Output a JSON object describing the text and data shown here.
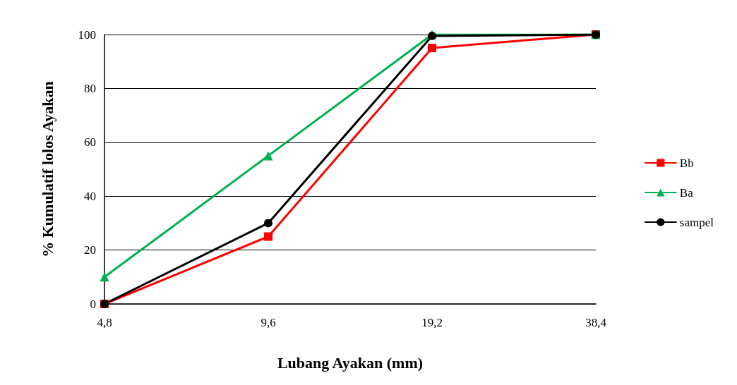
{
  "chart_data": {
    "type": "line",
    "xlabel": "Lubang Ayakan (mm)",
    "ylabel": "% Kumulatif lolos Ayakan",
    "categories": [
      "4,8",
      "9,6",
      "19,2",
      "38,4"
    ],
    "series": [
      {
        "name": "Bb",
        "color": "#ff0000",
        "marker": "square",
        "values": [
          0,
          25,
          95,
          100
        ]
      },
      {
        "name": "Ba",
        "color": "#00b050",
        "marker": "triangle",
        "values": [
          10,
          55,
          100,
          100
        ]
      },
      {
        "name": "sampel",
        "color": "#000000",
        "marker": "circle",
        "values": [
          0,
          30,
          99.5,
          100
        ]
      }
    ],
    "ylim": [
      0,
      100
    ],
    "yticks": [
      0,
      20,
      40,
      60,
      80,
      100
    ],
    "grid": "y",
    "legend": "right",
    "line_style": "solid"
  }
}
